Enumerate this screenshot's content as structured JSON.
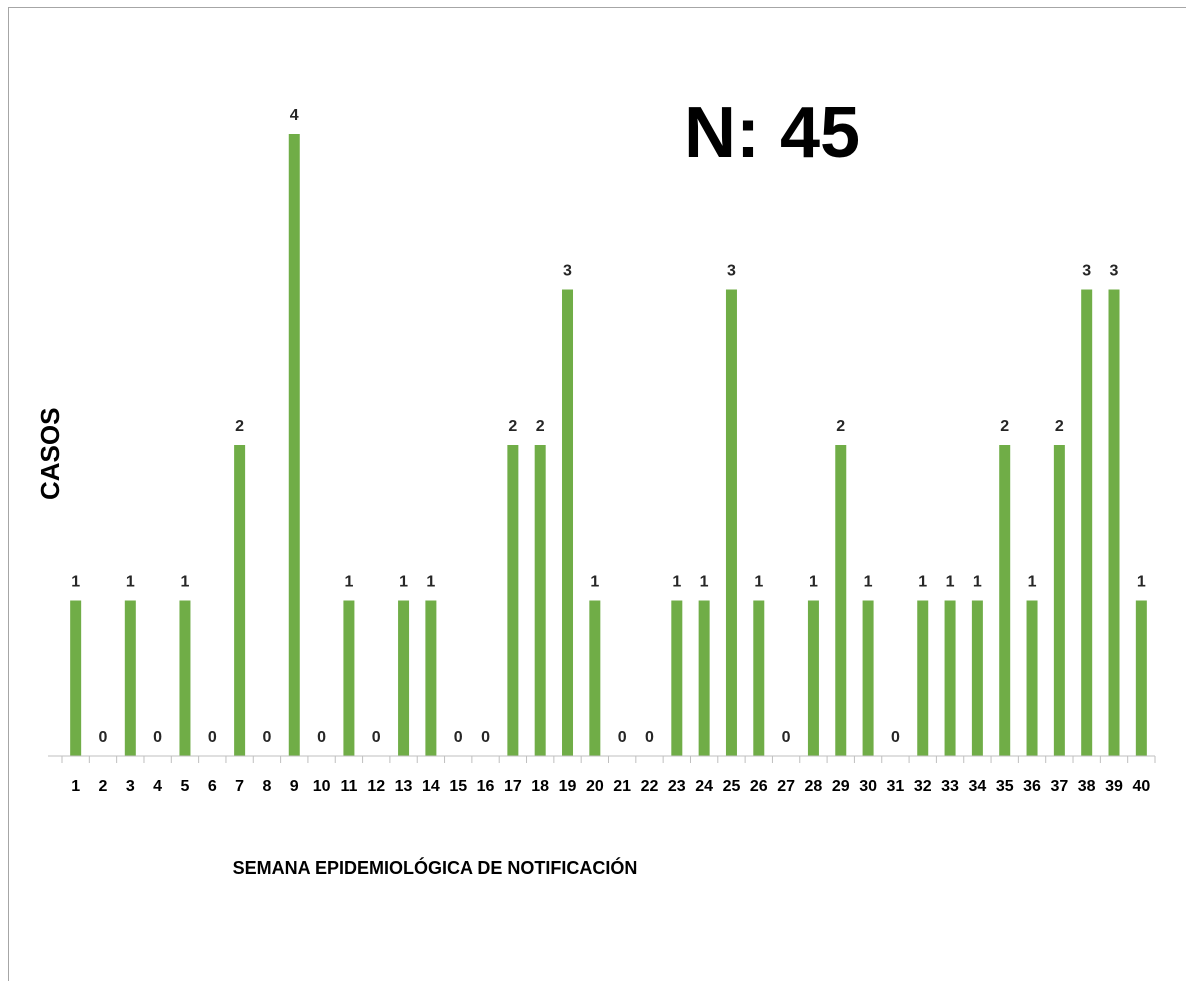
{
  "annotation": "N: 45",
  "chart_data": {
    "type": "bar",
    "categories": [
      "1",
      "2",
      "3",
      "4",
      "5",
      "6",
      "7",
      "8",
      "9",
      "10",
      "11",
      "12",
      "13",
      "14",
      "15",
      "16",
      "17",
      "18",
      "19",
      "20",
      "21",
      "22",
      "23",
      "24",
      "25",
      "26",
      "27",
      "28",
      "29",
      "30",
      "31",
      "32",
      "33",
      "34",
      "35",
      "36",
      "37",
      "38",
      "39",
      "40"
    ],
    "values": [
      1,
      0,
      1,
      0,
      1,
      0,
      2,
      0,
      4,
      0,
      1,
      0,
      1,
      1,
      0,
      0,
      2,
      2,
      3,
      1,
      0,
      0,
      1,
      1,
      3,
      1,
      0,
      1,
      2,
      1,
      0,
      1,
      1,
      1,
      2,
      1,
      2,
      3,
      3,
      1
    ],
    "title": "",
    "xlabel": "SEMANA EPIDEMIOLÓGICA  DE NOTIFICACIÓN",
    "ylabel": "CASOS",
    "ylim": [
      0,
      4
    ],
    "grid": false,
    "legend": "none",
    "data_labels": true,
    "bar_color": "#70ad47"
  }
}
